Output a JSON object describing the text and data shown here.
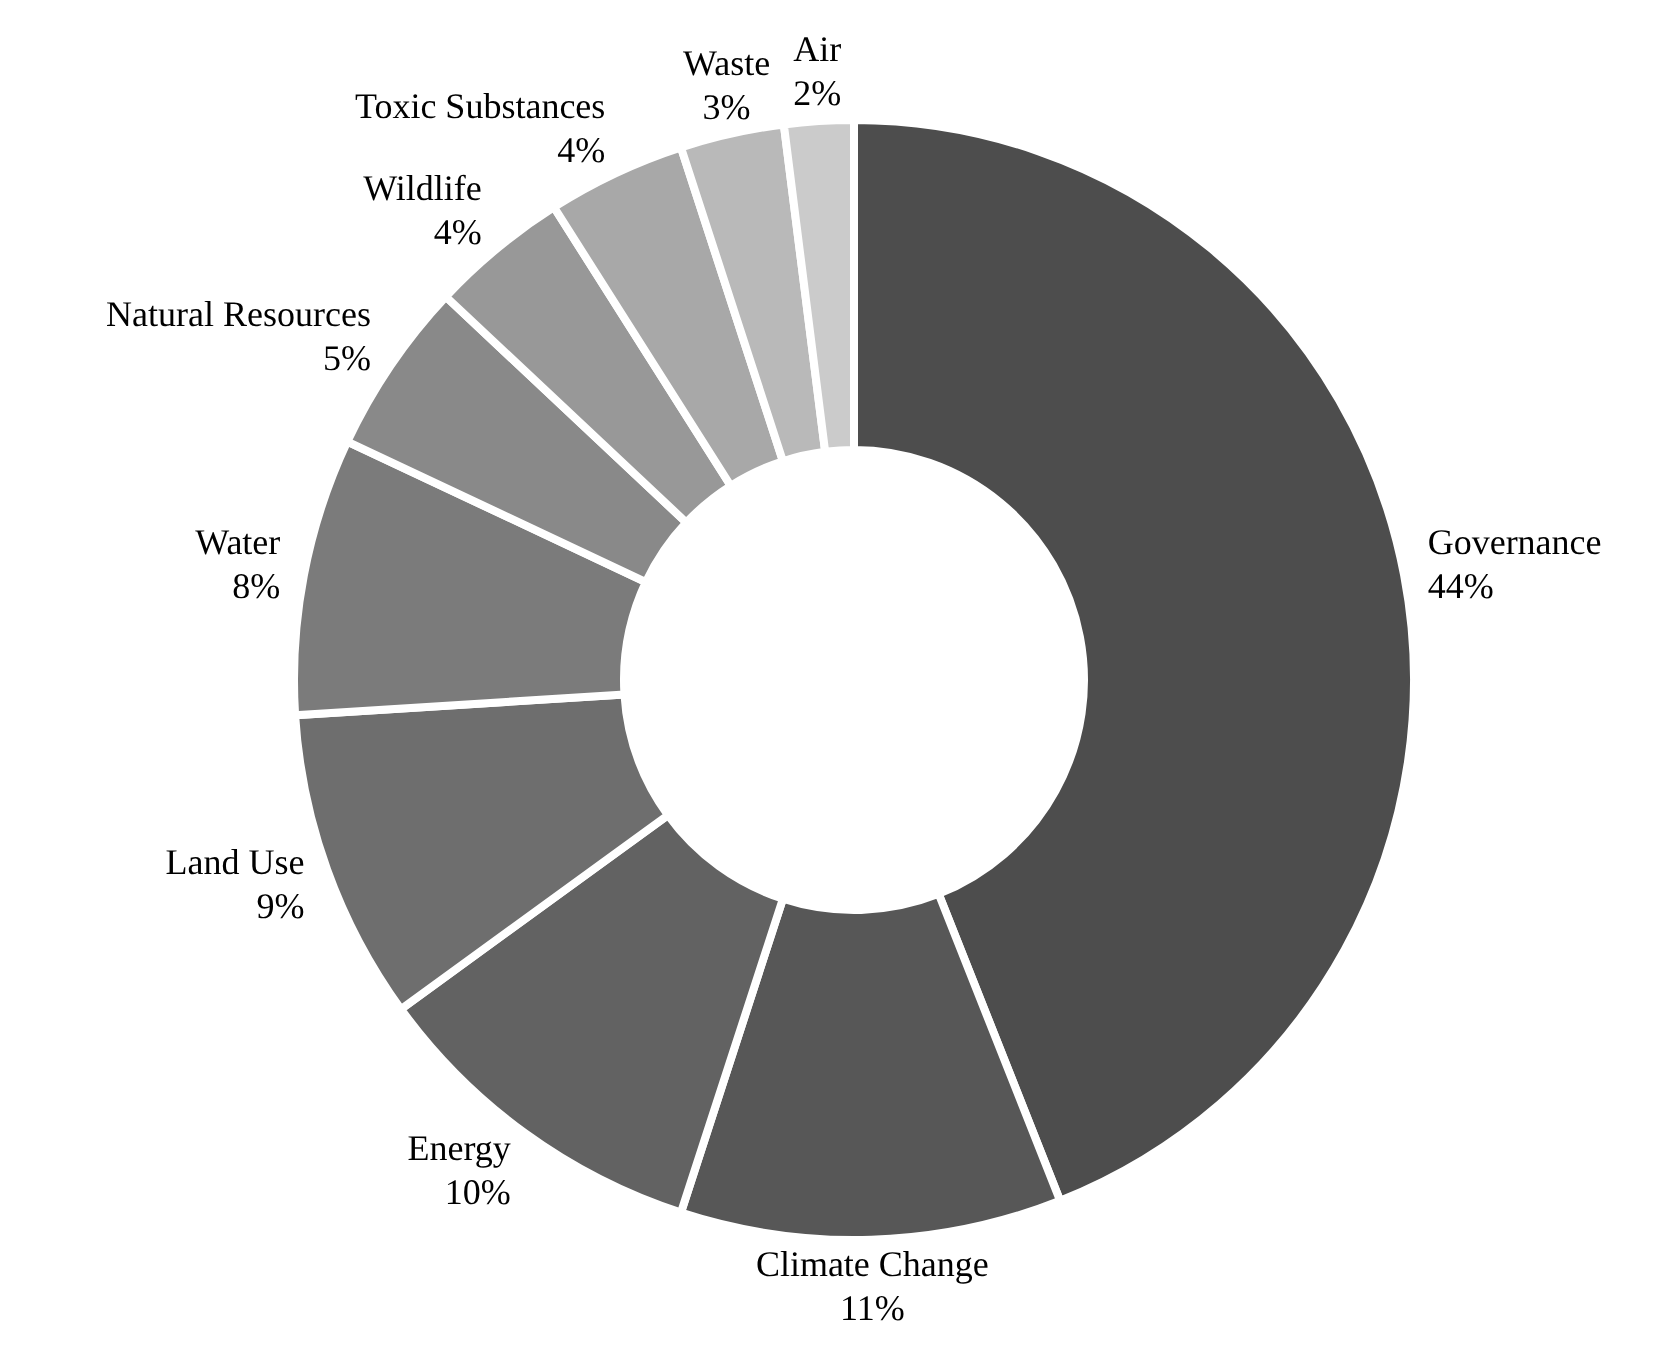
{
  "chart_data": {
    "type": "donut",
    "categories": [
      "Governance",
      "Climate Change",
      "Energy",
      "Land Use",
      "Water",
      "Natural Resources",
      "Wildlife",
      "Toxic Substances",
      "Waste",
      "Air"
    ],
    "values": [
      44,
      11,
      10,
      9,
      8,
      5,
      4,
      4,
      3,
      2
    ],
    "value_labels": [
      "44%",
      "11%",
      "10%",
      "9%",
      "8%",
      "5%",
      "4%",
      "4%",
      "3%",
      "2%"
    ],
    "colors": [
      "#4d4d4d",
      "#575757",
      "#626262",
      "#6e6e6e",
      "#7b7b7b",
      "#898989",
      "#989898",
      "#a8a8a8",
      "#b9b9b9",
      "#cbcbcb"
    ]
  }
}
